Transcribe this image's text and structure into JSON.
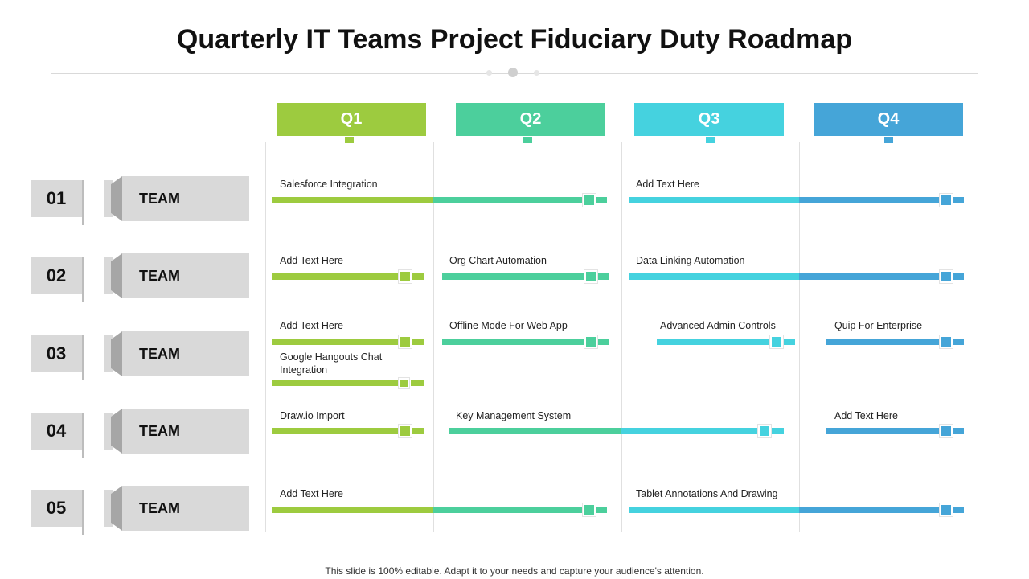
{
  "title": "Quarterly IT Teams Project Fiduciary Duty Roadmap",
  "footer": "This slide is 100% editable. Adapt it to your needs and capture your audience's attention.",
  "colors": {
    "q1": "#9dcb3f",
    "q2": "#4ccf9c",
    "q3": "#45d2df",
    "q4": "#45a5d8",
    "panel": "#d9d9d9"
  },
  "quarters": [
    {
      "label": "Q1",
      "color": "#9dcb3f"
    },
    {
      "label": "Q2",
      "color": "#4ccf9c"
    },
    {
      "label": "Q3",
      "color": "#45d2df"
    },
    {
      "label": "Q4",
      "color": "#45a5d8"
    }
  ],
  "teams": [
    {
      "number": "01",
      "label": "TEAM"
    },
    {
      "number": "02",
      "label": "TEAM"
    },
    {
      "number": "03",
      "label": "TEAM"
    },
    {
      "number": "04",
      "label": "TEAM"
    },
    {
      "number": "05",
      "label": "TEAM"
    }
  ],
  "tasks": [
    {
      "team": "01",
      "label": "Salesforce Integration",
      "start_quarter": "Q1",
      "end_quarter": "Q2"
    },
    {
      "team": "01",
      "label": "Add Text Here",
      "start_quarter": "Q3",
      "end_quarter": "Q4"
    },
    {
      "team": "02",
      "label": "Add Text Here",
      "start_quarter": "Q1",
      "end_quarter": "Q1"
    },
    {
      "team": "02",
      "label": "Org Chart Automation",
      "start_quarter": "Q2",
      "end_quarter": "Q2"
    },
    {
      "team": "02",
      "label": "Data Linking Automation",
      "start_quarter": "Q3",
      "end_quarter": "Q4"
    },
    {
      "team": "03",
      "label": "Add Text Here",
      "start_quarter": "Q1",
      "end_quarter": "Q1"
    },
    {
      "team": "03",
      "label": "Offline Mode For Web App",
      "start_quarter": "Q2",
      "end_quarter": "Q2"
    },
    {
      "team": "03",
      "label": "Advanced Admin Controls",
      "start_quarter": "Q3",
      "end_quarter": "Q3"
    },
    {
      "team": "03",
      "label": "Quip For Enterprise",
      "start_quarter": "Q4",
      "end_quarter": "Q4"
    },
    {
      "team": "03",
      "label": "Google Hangouts Chat Integration",
      "start_quarter": "Q1",
      "end_quarter": "Q1"
    },
    {
      "team": "04",
      "label": "Draw.io Import",
      "start_quarter": "Q1",
      "end_quarter": "Q1"
    },
    {
      "team": "04",
      "label": "Key Management System",
      "start_quarter": "Q2",
      "end_quarter": "Q3"
    },
    {
      "team": "04",
      "label": "Add Text Here",
      "start_quarter": "Q4",
      "end_quarter": "Q4"
    },
    {
      "team": "05",
      "label": "Add Text Here",
      "start_quarter": "Q1",
      "end_quarter": "Q2"
    },
    {
      "team": "05",
      "label": "Tablet Annotations And Drawing",
      "start_quarter": "Q3",
      "end_quarter": "Q4"
    }
  ]
}
